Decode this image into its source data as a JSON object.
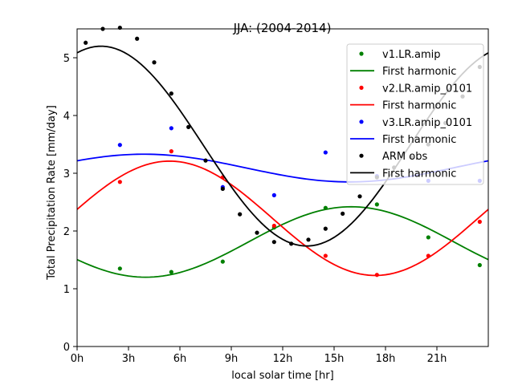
{
  "chart_data": {
    "type": "scatter",
    "title": "JJA: (2004-2014)",
    "xlabel": "local solar time [hr]",
    "ylabel": "Total Precipitation Rate [mm/day]",
    "xlim": [
      0,
      24
    ],
    "ylim": [
      0,
      5.5
    ],
    "xticks": [
      0,
      3,
      6,
      9,
      12,
      15,
      18,
      21
    ],
    "xtick_labels": [
      "0h",
      "3h",
      "6h",
      "9h",
      "12h",
      "15h",
      "18h",
      "21h"
    ],
    "yticks": [
      0,
      1,
      2,
      3,
      4,
      5
    ],
    "ytick_labels": [
      "0",
      "1",
      "2",
      "3",
      "4",
      "5"
    ],
    "grid": false,
    "legend_position": "top-right",
    "series": [
      {
        "name": "v1.LR.amip",
        "color": "#008000",
        "points": [
          [
            2.5,
            1.35
          ],
          [
            5.5,
            1.29
          ],
          [
            8.5,
            1.47
          ],
          [
            11.5,
            2.06
          ],
          [
            14.5,
            2.4
          ],
          [
            17.5,
            2.46
          ],
          [
            20.5,
            1.89
          ],
          [
            23.5,
            1.41
          ]
        ],
        "fit_name": "First harmonic",
        "fit": {
          "mean": 1.81,
          "amplitude": 0.61,
          "peak_hour": 16.0
        }
      },
      {
        "name": "v2.LR.amip_0101",
        "color": "#ff0000",
        "points": [
          [
            2.5,
            2.85
          ],
          [
            5.5,
            3.38
          ],
          [
            8.5,
            2.93
          ],
          [
            11.5,
            2.09
          ],
          [
            14.5,
            1.57
          ],
          [
            17.5,
            1.24
          ],
          [
            20.5,
            1.57
          ],
          [
            23.5,
            2.16
          ]
        ],
        "fit_name": "First harmonic",
        "fit": {
          "mean": 2.22,
          "amplitude": 0.99,
          "peak_hour": 5.4
        }
      },
      {
        "name": "v3.LR.amip_0101",
        "color": "#0000ff",
        "points": [
          [
            2.5,
            3.49
          ],
          [
            5.5,
            3.78
          ],
          [
            8.5,
            2.76
          ],
          [
            11.5,
            2.62
          ],
          [
            14.5,
            3.36
          ],
          [
            17.5,
            2.95
          ],
          [
            20.5,
            2.87
          ],
          [
            23.5,
            2.87
          ]
        ],
        "fit_name": "First harmonic",
        "fit": {
          "mean": 3.09,
          "amplitude": 0.24,
          "peak_hour": 3.9
        }
      },
      {
        "name": "ARM obs",
        "color": "#000000",
        "points": [
          [
            0.5,
            5.26
          ],
          [
            1.5,
            5.5
          ],
          [
            2.5,
            5.52
          ],
          [
            3.5,
            5.33
          ],
          [
            4.5,
            4.92
          ],
          [
            5.5,
            4.38
          ],
          [
            6.5,
            3.8
          ],
          [
            7.5,
            3.22
          ],
          [
            8.5,
            2.73
          ],
          [
            9.5,
            2.29
          ],
          [
            10.5,
            1.97
          ],
          [
            11.5,
            1.81
          ],
          [
            12.5,
            1.78
          ],
          [
            13.5,
            1.85
          ],
          [
            14.5,
            2.04
          ],
          [
            15.5,
            2.3
          ],
          [
            16.5,
            2.6
          ],
          [
            17.5,
            2.93
          ],
          [
            18.5,
            3.1
          ],
          [
            19.5,
            3.28
          ],
          [
            20.5,
            3.5
          ],
          [
            21.5,
            3.87
          ],
          [
            22.5,
            4.33
          ],
          [
            23.5,
            4.84
          ]
        ],
        "fit_name": "First harmonic",
        "fit": {
          "mean": 3.47,
          "amplitude": 1.73,
          "peak_hour": 1.4
        }
      }
    ]
  }
}
